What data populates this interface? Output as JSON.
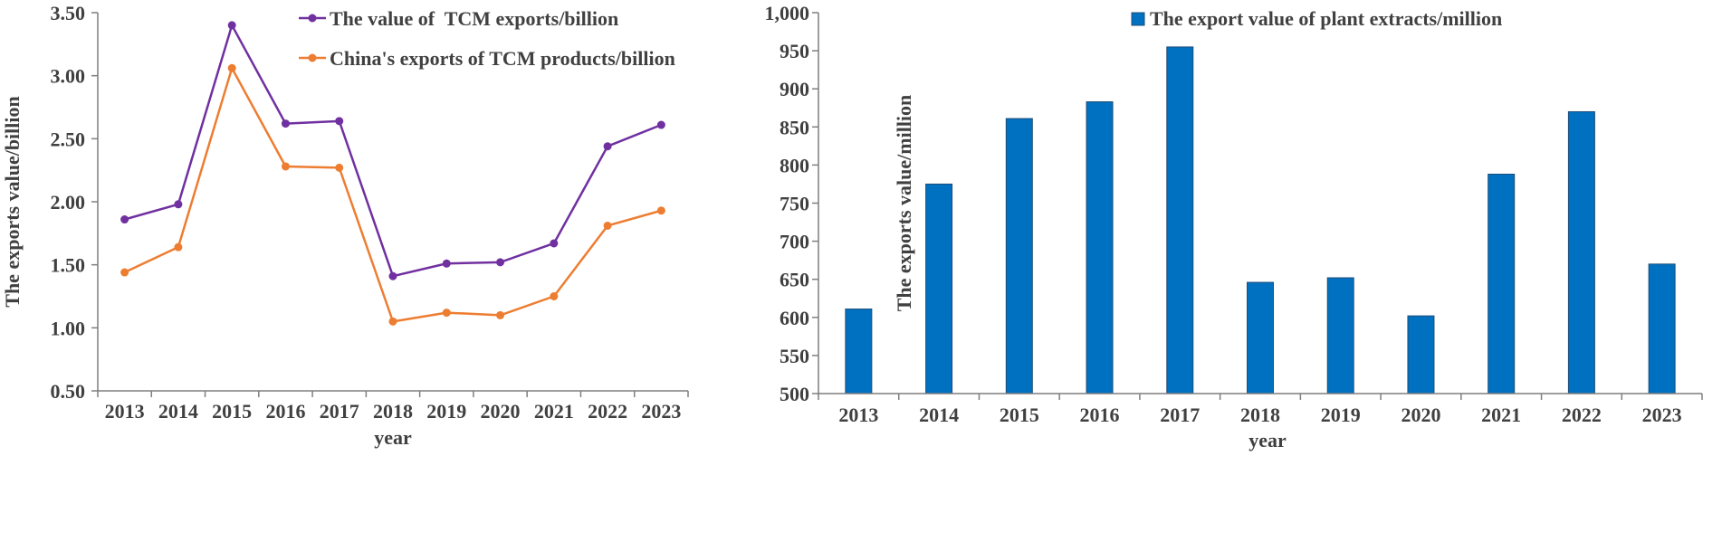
{
  "colors": {
    "purple": "#7030A0",
    "orange": "#ED7D31",
    "blue": "#0070C0",
    "bar_stroke": "#1F4E79",
    "axis": "#7F7F7F",
    "text": "#404040"
  },
  "chart_data": [
    {
      "type": "line",
      "title": "",
      "xlabel": "year",
      "ylabel": "The exports value/billion",
      "ylim": [
        0.5,
        3.5
      ],
      "ytick_values": [
        0.5,
        1.0,
        1.5,
        2.0,
        2.5,
        3.0,
        3.5
      ],
      "ytick_labels": [
        "0.50",
        "1.00",
        "1.50",
        "2.00",
        "2.50",
        "3.00",
        "3.50"
      ],
      "categories": [
        "2013",
        "2014",
        "2015",
        "2016",
        "2017",
        "2018",
        "2019",
        "2020",
        "2021",
        "2022",
        "2023"
      ],
      "legend_position": "top-center",
      "grid": false,
      "series": [
        {
          "name": "The value of  TCM exports/billion",
          "color": "#7030A0",
          "values": [
            1.86,
            1.98,
            3.4,
            2.62,
            2.64,
            1.41,
            1.51,
            1.52,
            1.67,
            2.44,
            2.61
          ]
        },
        {
          "name": "China's exports of TCM products/billion",
          "color": "#ED7D31",
          "values": [
            1.44,
            1.64,
            3.06,
            2.28,
            2.27,
            1.05,
            1.12,
            1.1,
            1.25,
            1.81,
            1.93
          ]
        }
      ]
    },
    {
      "type": "bar",
      "title": "",
      "xlabel": "year",
      "ylabel": "The exports value/million",
      "ylim": [
        500,
        1000
      ],
      "ytick_values": [
        500,
        550,
        600,
        650,
        700,
        750,
        800,
        850,
        900,
        950,
        1000
      ],
      "ytick_labels": [
        "500",
        "550",
        "600",
        "650",
        "700",
        "750",
        "800",
        "850",
        "900",
        "950",
        "1,000"
      ],
      "categories": [
        "2013",
        "2014",
        "2015",
        "2016",
        "2017",
        "2018",
        "2019",
        "2020",
        "2021",
        "2022",
        "2023"
      ],
      "legend_position": "top-center",
      "grid": false,
      "series": [
        {
          "name": "The export value of plant extracts/million",
          "color": "#0070C0",
          "values": [
            611,
            775,
            861,
            883,
            955,
            646,
            652,
            602,
            788,
            870,
            670
          ]
        }
      ]
    }
  ]
}
